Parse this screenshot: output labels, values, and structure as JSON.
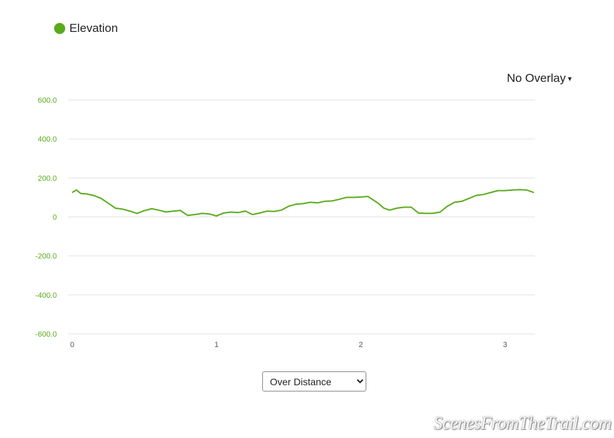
{
  "legend": {
    "label": "Elevation",
    "color": "#5aab1c"
  },
  "overlay": {
    "label": "No Overlay",
    "caret": "▾"
  },
  "controls": {
    "mode_selected": "Over Distance",
    "mode_options": [
      "Over Distance"
    ]
  },
  "watermark": {
    "text": "ScenesFromTheTrail.com"
  },
  "chart_data": {
    "type": "line",
    "title": "",
    "xlabel": "",
    "ylabel": "",
    "xlim": [
      0,
      3.2
    ],
    "ylim": [
      -600,
      600
    ],
    "y_ticks": [
      600,
      400,
      200,
      0,
      -200,
      -400,
      -600
    ],
    "y_tick_labels": [
      "600.0",
      "400.0",
      "200.0",
      "0",
      "-200.0",
      "-400.0",
      "-600.0"
    ],
    "x_ticks": [
      0,
      1,
      2,
      3
    ],
    "x_tick_labels": [
      "0",
      "1",
      "2",
      "3"
    ],
    "grid": "horizontal",
    "series": [
      {
        "name": "Elevation",
        "color": "#5aab1c",
        "x": [
          0,
          0.03,
          0.06,
          0.1,
          0.15,
          0.2,
          0.25,
          0.3,
          0.35,
          0.4,
          0.45,
          0.5,
          0.55,
          0.6,
          0.65,
          0.7,
          0.75,
          0.8,
          0.85,
          0.9,
          0.95,
          1.0,
          1.05,
          1.1,
          1.15,
          1.2,
          1.25,
          1.3,
          1.35,
          1.4,
          1.45,
          1.5,
          1.55,
          1.6,
          1.65,
          1.7,
          1.75,
          1.8,
          1.85,
          1.9,
          1.95,
          2.0,
          2.05,
          2.08,
          2.12,
          2.16,
          2.2,
          2.25,
          2.3,
          2.35,
          2.4,
          2.45,
          2.5,
          2.55,
          2.6,
          2.65,
          2.7,
          2.75,
          2.8,
          2.85,
          2.9,
          2.95,
          3.0,
          3.05,
          3.1,
          3.15,
          3.2
        ],
        "values": [
          125,
          138,
          120,
          118,
          110,
          95,
          70,
          45,
          40,
          30,
          18,
          32,
          42,
          35,
          25,
          30,
          33,
          8,
          12,
          18,
          15,
          5,
          20,
          25,
          22,
          30,
          12,
          20,
          30,
          28,
          35,
          55,
          65,
          68,
          75,
          72,
          80,
          82,
          90,
          100,
          100,
          102,
          105,
          90,
          70,
          45,
          35,
          45,
          50,
          50,
          20,
          18,
          18,
          25,
          55,
          75,
          80,
          95,
          110,
          115,
          125,
          135,
          135,
          138,
          140,
          138,
          125
        ]
      }
    ]
  }
}
